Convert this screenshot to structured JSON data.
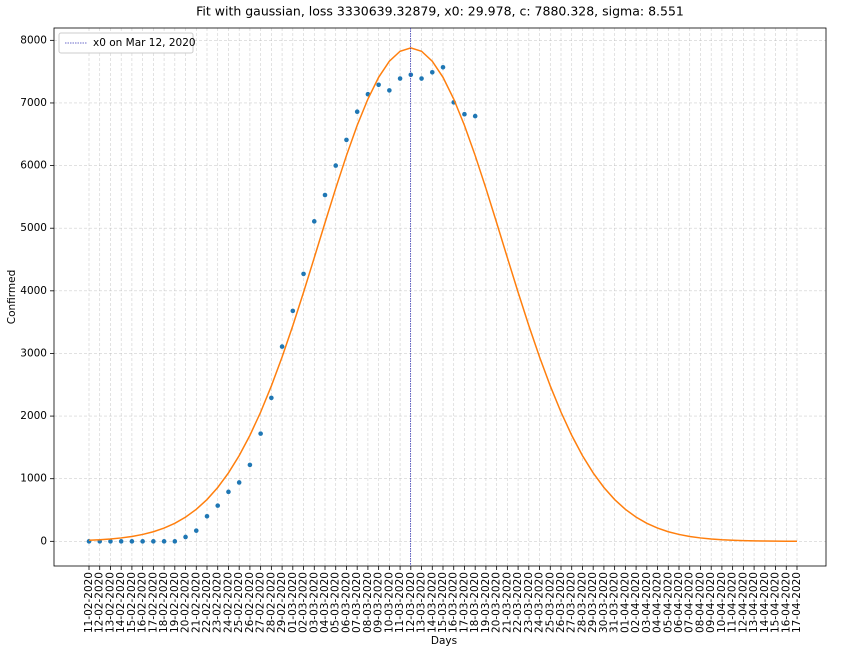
{
  "chart_data": {
    "type": "scatter",
    "title": "Fit with gaussian, loss 3330639.32879, x0: 29.978, c: 7880.328, sigma: 8.551",
    "x_label": "Days",
    "y_label": "Confirmed",
    "categories": [
      "11-02-2020",
      "12-02-2020",
      "13-02-2020",
      "14-02-2020",
      "15-02-2020",
      "16-02-2020",
      "17-02-2020",
      "18-02-2020",
      "19-02-2020",
      "20-02-2020",
      "21-02-2020",
      "22-02-2020",
      "23-02-2020",
      "24-02-2020",
      "25-02-2020",
      "26-02-2020",
      "27-02-2020",
      "28-02-2020",
      "29-02-2020",
      "01-03-2020",
      "02-03-2020",
      "03-03-2020",
      "04-03-2020",
      "05-03-2020",
      "06-03-2020",
      "07-03-2020",
      "08-03-2020",
      "09-03-2020",
      "10-03-2020",
      "11-03-2020",
      "12-03-2020",
      "13-03-2020",
      "14-03-2020",
      "15-03-2020",
      "16-03-2020",
      "17-03-2020",
      "18-03-2020",
      "19-03-2020",
      "20-03-2020",
      "21-03-2020",
      "22-03-2020",
      "23-03-2020",
      "24-03-2020",
      "25-03-2020",
      "26-03-2020",
      "27-03-2020",
      "28-03-2020",
      "29-03-2020",
      "30-03-2020",
      "31-03-2020",
      "01-04-2020",
      "02-04-2020",
      "03-04-2020",
      "04-04-2020",
      "05-04-2020",
      "06-04-2020",
      "07-04-2020",
      "08-04-2020",
      "09-04-2020",
      "10-04-2020",
      "11-04-2020",
      "12-04-2020",
      "13-04-2020",
      "14-04-2020",
      "15-04-2020",
      "16-04-2020",
      "17-04-2020"
    ],
    "series": [
      {
        "kind": "points",
        "color": "#1f77b4",
        "values": [
          0,
          0,
          0,
          0,
          0,
          0,
          0,
          0,
          0,
          70,
          170,
          400,
          570,
          790,
          940,
          1220,
          1720,
          2290,
          3110,
          3680,
          4270,
          5110,
          5530,
          6000,
          6410,
          6860,
          7140,
          7290,
          7200,
          7390,
          7450,
          7390,
          7490,
          7570,
          7010,
          6820,
          6790,
          null,
          null,
          null,
          null,
          null,
          null,
          null,
          null,
          null,
          null,
          null,
          null,
          null,
          null,
          null,
          null,
          null,
          null,
          null,
          null,
          null,
          null,
          null,
          null,
          null,
          null,
          null,
          null,
          null,
          null
        ]
      },
      {
        "kind": "line",
        "color": "#ff7f0e",
        "values": [
          17,
          25,
          37,
          54,
          77,
          110,
          153,
          212,
          288,
          386,
          511,
          667,
          860,
          1092,
          1369,
          1692,
          2063,
          2481,
          2944,
          3445,
          3977,
          4529,
          5087,
          5637,
          6160,
          6642,
          7063,
          7410,
          7667,
          7826,
          7880,
          7826,
          7667,
          7410,
          7063,
          6642,
          6160,
          5637,
          5087,
          4529,
          3977,
          3445,
          2944,
          2481,
          2063,
          1692,
          1369,
          1092,
          860,
          667,
          511,
          386,
          288,
          212,
          153,
          110,
          77,
          54,
          37,
          25,
          17,
          11,
          7,
          5,
          3,
          2,
          1
        ]
      }
    ],
    "vline": {
      "name": "x0 on Mar 12, 2020",
      "x": 29.978,
      "color": "#3b3bb8"
    },
    "ylim": [
      -394,
      8197
    ],
    "yticks": [
      0,
      1000,
      2000,
      3000,
      4000,
      5000,
      6000,
      7000,
      8000
    ],
    "grid": true,
    "legend": "upper left"
  }
}
